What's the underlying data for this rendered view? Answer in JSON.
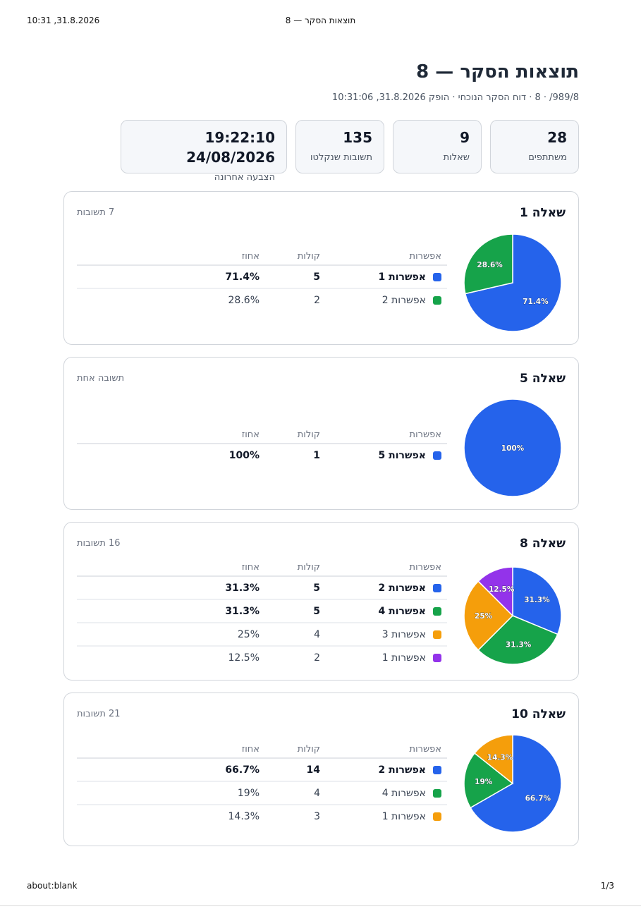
{
  "print_header": {
    "datetime": "10:31 ,31.8.2026",
    "title": "תוצאות הסקר — 8"
  },
  "print_footer": {
    "url": "about:blank",
    "page": "1/3"
  },
  "report": {
    "title": "תוצאות הסקר — 8",
    "subtitle": "989/8/ · 8 · דוח הסקר הנוכחי · הופק 31.8.2026, 10:31:06"
  },
  "stats": [
    {
      "value": "28",
      "label": "משתתפים"
    },
    {
      "value": "9",
      "label": "שאלות"
    },
    {
      "value": "135",
      "label": "תשובות שנקלטו"
    },
    {
      "value": "19:22:10 24/08/2026",
      "label": "הצבעה אחרונה"
    }
  ],
  "table_headers": {
    "option": "אפשרות",
    "votes": "קולות",
    "percent": "אחוז"
  },
  "colors": {
    "blue": "#2563eb",
    "green": "#16a34a",
    "orange": "#f59e0b",
    "purple": "#9333ea"
  },
  "questions": [
    {
      "title": "שאלה 1",
      "count_label": "7 תשובות",
      "chart_data": {
        "type": "pie",
        "slices": [
          {
            "label": "אפשרות 1",
            "votes": 5,
            "percent": "71.4%",
            "value": 71.4,
            "color": "#2563eb"
          },
          {
            "label": "אפשרות 2",
            "votes": 2,
            "percent": "28.6%",
            "value": 28.6,
            "color": "#16a34a"
          }
        ]
      }
    },
    {
      "title": "שאלה 5",
      "count_label": "תשובה אחת",
      "chart_data": {
        "type": "pie",
        "slices": [
          {
            "label": "אפשרות 5",
            "votes": 1,
            "percent": "100%",
            "value": 100,
            "color": "#2563eb"
          }
        ]
      }
    },
    {
      "title": "שאלה 8",
      "count_label": "16 תשובות",
      "chart_data": {
        "type": "pie",
        "slices": [
          {
            "label": "אפשרות 2",
            "votes": 5,
            "percent": "31.3%",
            "value": 31.25,
            "color": "#2563eb"
          },
          {
            "label": "אפשרות 4",
            "votes": 5,
            "percent": "31.3%",
            "value": 31.25,
            "color": "#16a34a"
          },
          {
            "label": "אפשרות 3",
            "votes": 4,
            "percent": "25%",
            "value": 25,
            "color": "#f59e0b"
          },
          {
            "label": "אפשרות 1",
            "votes": 2,
            "percent": "12.5%",
            "value": 12.5,
            "color": "#9333ea"
          }
        ]
      }
    },
    {
      "title": "שאלה 10",
      "count_label": "21 תשובות",
      "chart_data": {
        "type": "pie",
        "slices": [
          {
            "label": "אפשרות 2",
            "votes": 14,
            "percent": "66.7%",
            "value": 66.7,
            "color": "#2563eb"
          },
          {
            "label": "אפשרות 4",
            "votes": 4,
            "percent": "19%",
            "value": 19,
            "color": "#16a34a"
          },
          {
            "label": "אפשרות 1",
            "votes": 3,
            "percent": "14.3%",
            "value": 14.3,
            "color": "#f59e0b"
          }
        ]
      }
    }
  ]
}
